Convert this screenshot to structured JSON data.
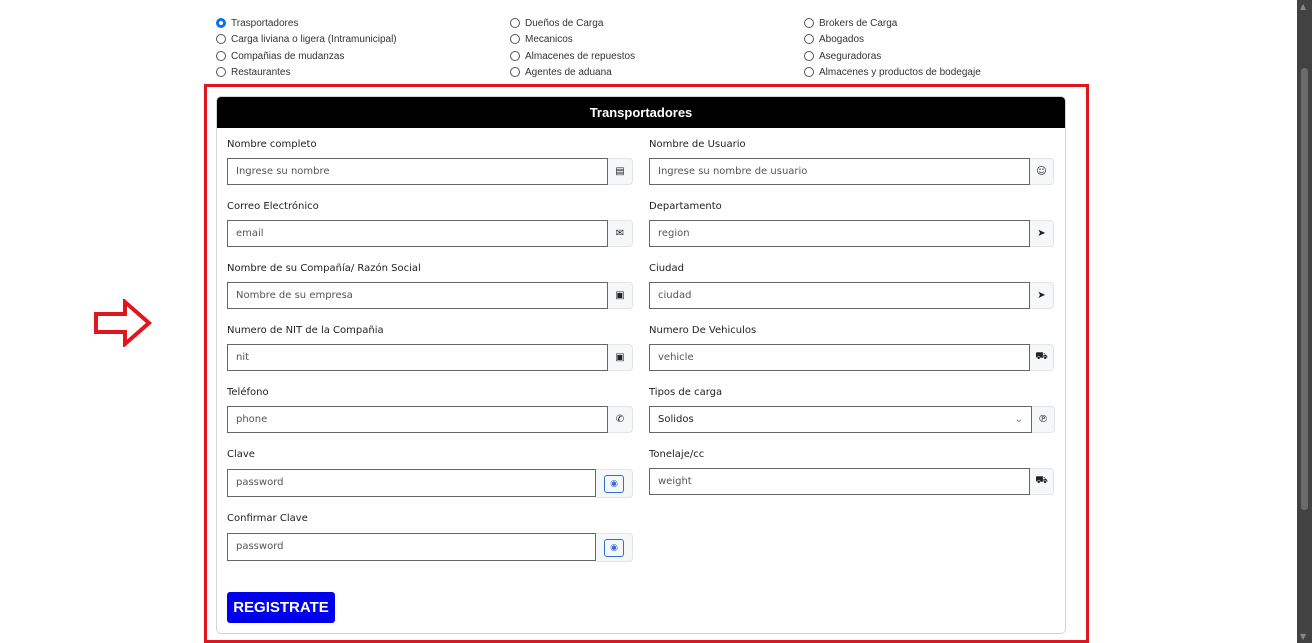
{
  "categories": [
    {
      "label": "Trasportadores",
      "selected": true
    },
    {
      "label": "Carga liviana o ligera (Intramunicipal)",
      "selected": false
    },
    {
      "label": "Compañias de mudanzas",
      "selected": false
    },
    {
      "label": "Restaurantes",
      "selected": false
    },
    {
      "label": "Dueños de Carga",
      "selected": false
    },
    {
      "label": "Mecanicos",
      "selected": false
    },
    {
      "label": "Almacenes de repuestos",
      "selected": false
    },
    {
      "label": "Agentes de aduana",
      "selected": false
    },
    {
      "label": "Brokers de Carga",
      "selected": false
    },
    {
      "label": "Abogados",
      "selected": false
    },
    {
      "label": "Aseguradoras",
      "selected": false
    },
    {
      "label": "Almacenes y productos de bodegaje",
      "selected": false
    }
  ],
  "form": {
    "title": "Transportadores",
    "fields": [
      {
        "label": "Nombre completo",
        "placeholder": "Ingrese su nombre",
        "icon": "id-card-icon"
      },
      {
        "label": "Nombre de Usuario",
        "placeholder": "Ingrese su nombre de usuario",
        "icon": "user-icon"
      },
      {
        "label": "Correo Electrónico",
        "placeholder": "email",
        "icon": "envelope-icon"
      },
      {
        "label": "Departamento",
        "placeholder": "region",
        "icon": "location-arrow-icon"
      },
      {
        "label": "Nombre de su Compañía/ Razón Social",
        "placeholder": "Nombre de su empresa",
        "icon": "id-badge-icon"
      },
      {
        "label": "Ciudad",
        "placeholder": "ciudad",
        "icon": "location-arrow-icon"
      },
      {
        "label": "Numero de NIT de la Compañia",
        "placeholder": "nit",
        "icon": "id-badge-icon"
      },
      {
        "label": "Numero De Vehiculos",
        "placeholder": "vehicle",
        "icon": "truck-icon"
      },
      {
        "label": "Teléfono",
        "placeholder": "phone",
        "icon": "phone-icon"
      },
      {
        "label": "Tipos de carga",
        "value": "Solidos",
        "icon": "parking-icon"
      },
      {
        "label": "Clave",
        "placeholder": "password",
        "icon": "eye-icon"
      },
      {
        "label": "Tonelaje/cc",
        "placeholder": "weight",
        "icon": "truck-icon"
      },
      {
        "label": "Confirmar Clave",
        "placeholder": "password",
        "icon": "eye-icon"
      }
    ],
    "submit_label": "REGISTRATE"
  },
  "colors": {
    "highlight": "#e0161f",
    "button": "#0000ee",
    "header": "#000000"
  }
}
